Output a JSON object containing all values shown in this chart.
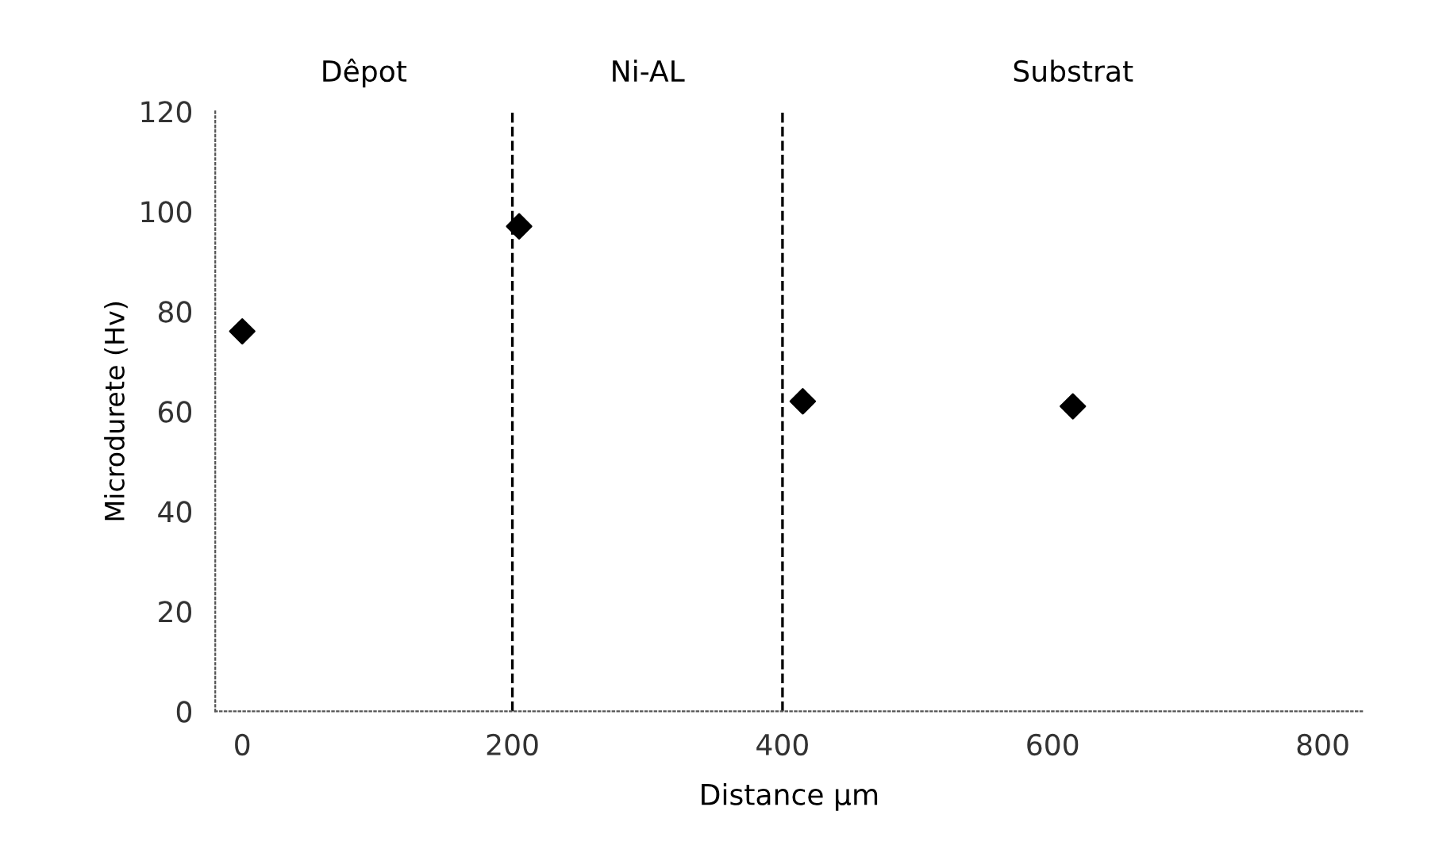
{
  "chart_data": {
    "type": "scatter",
    "xlabel": "Distance µm",
    "ylabel": "Microdurete (Hv)",
    "x": [
      0,
      205,
      415,
      615
    ],
    "values": [
      76,
      97,
      62,
      61
    ],
    "color": "#000000",
    "marker": "diamond",
    "xlim": [
      -20,
      830
    ],
    "xticks": [
      0,
      200,
      400,
      600,
      800
    ],
    "ylim": [
      0,
      120
    ],
    "yticks": [
      0,
      20,
      40,
      60,
      80,
      100,
      120
    ],
    "ref_lines": [
      {
        "axis": "x",
        "value": 200,
        "color": "#000000",
        "line_style": "dashed"
      },
      {
        "axis": "x",
        "value": 400,
        "color": "#000000",
        "line_style": "dashed"
      }
    ],
    "annotations": [
      "Dêpot",
      "Ni-AL",
      "Substrat"
    ],
    "grid": false,
    "legend": false
  }
}
